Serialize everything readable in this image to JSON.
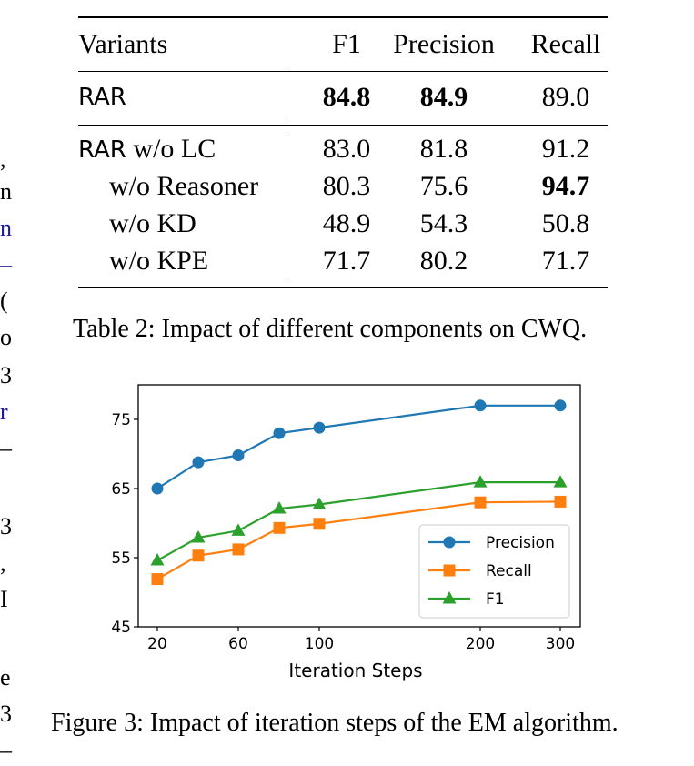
{
  "margin_fragments": [
    ",",
    "n",
    "n",
    "–",
    "(",
    "o",
    "3",
    "r",
    "–",
    "3",
    ",",
    "I",
    "e",
    "3",
    "–"
  ],
  "table": {
    "header": [
      "Variants",
      "F1",
      "Precision",
      "Recall"
    ],
    "rows": [
      {
        "variant": "RAR",
        "f1": "84.8",
        "precision": "84.9",
        "recall": "89.0"
      },
      {
        "variant": "RAR w/o LC",
        "f1": "83.0",
        "precision": "81.8",
        "recall": "91.2"
      },
      {
        "variant": "w/o Reasoner",
        "f1": "80.3",
        "precision": "75.6",
        "recall": "94.7"
      },
      {
        "variant": "w/o KD",
        "f1": "48.9",
        "precision": "54.3",
        "recall": "50.8"
      },
      {
        "variant": "w/o KPE",
        "f1": "71.7",
        "precision": "80.2",
        "recall": "71.7"
      }
    ],
    "rar_prefix": "RAR",
    "wo_lc_suffix": " w/o LC",
    "caption": "Table 2: Impact of different components on CWQ."
  },
  "chart_data": {
    "type": "line",
    "x": [
      20,
      40,
      60,
      80,
      100,
      200,
      300
    ],
    "xticks": [
      "20",
      "60",
      "100",
      "200",
      "300"
    ],
    "xlabel": "Iteration Steps",
    "ylabel": "",
    "yticks": [
      "45",
      "55",
      "65",
      "75"
    ],
    "ylim": [
      45,
      80
    ],
    "series": [
      {
        "name": "Precision",
        "color": "#1f77b4",
        "marker": "circle",
        "values": [
          65.0,
          68.8,
          69.8,
          73.0,
          73.8,
          77.0,
          77.0
        ]
      },
      {
        "name": "Recall",
        "color": "#ff7f0e",
        "marker": "square",
        "values": [
          51.9,
          55.3,
          56.2,
          59.3,
          59.9,
          63.0,
          63.1
        ]
      },
      {
        "name": "F1",
        "color": "#2ca02c",
        "marker": "triangle",
        "values": [
          54.6,
          57.9,
          58.9,
          62.1,
          62.7,
          65.9,
          65.9
        ]
      }
    ],
    "legend": "bottom-right",
    "grid": false,
    "caption": "Figure 3: Impact of iteration steps of the EM algorithm."
  }
}
